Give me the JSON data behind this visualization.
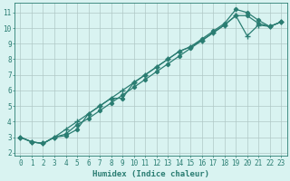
{
  "title": "",
  "xlabel": "Humidex (Indice chaleur)",
  "xlim": [
    -0.5,
    23.5
  ],
  "ylim": [
    1.8,
    11.6
  ],
  "xticks": [
    0,
    1,
    2,
    3,
    4,
    5,
    6,
    7,
    8,
    9,
    10,
    11,
    12,
    13,
    14,
    15,
    16,
    17,
    18,
    19,
    20,
    21,
    22,
    23
  ],
  "yticks": [
    2,
    3,
    4,
    5,
    6,
    7,
    8,
    9,
    10,
    11
  ],
  "bg_color": "#d9f3f1",
  "plot_bg_color": "#d9f3f1",
  "line_color": "#2a7d72",
  "grid_color": "#b0c8c6",
  "spine_color": "#2a7d72",
  "tick_color": "#2a7d72",
  "label_color": "#2a7d72",
  "line1_x": [
    0,
    1,
    2,
    3,
    4,
    5,
    6,
    7,
    8,
    9,
    10,
    11,
    12,
    13,
    14,
    15,
    16,
    17,
    18,
    19,
    20,
    21,
    22,
    23
  ],
  "line1_y": [
    3.0,
    2.7,
    2.6,
    3.0,
    3.1,
    3.5,
    4.5,
    5.0,
    5.5,
    5.5,
    6.5,
    7.0,
    7.5,
    8.0,
    8.5,
    8.8,
    9.3,
    9.8,
    10.3,
    11.2,
    11.0,
    10.5,
    10.1,
    10.4
  ],
  "line2_x": [
    0,
    1,
    2,
    3,
    4,
    5,
    6,
    7,
    8,
    9,
    10,
    11,
    12,
    13,
    14,
    15,
    16,
    17,
    18,
    19,
    20,
    21,
    22,
    23
  ],
  "line2_y": [
    3.0,
    2.7,
    2.6,
    3.0,
    3.2,
    3.8,
    4.2,
    4.7,
    5.2,
    5.7,
    6.2,
    6.7,
    7.2,
    7.7,
    8.2,
    8.7,
    9.2,
    9.7,
    10.2,
    10.8,
    10.8,
    10.3,
    10.1,
    10.4
  ],
  "line3_x": [
    0,
    1,
    2,
    3,
    4,
    5,
    6,
    7,
    8,
    9,
    10,
    11,
    12,
    13,
    14,
    15,
    16,
    17,
    18,
    19,
    20,
    21,
    22,
    23
  ],
  "line3_y": [
    3.0,
    2.7,
    2.6,
    3.0,
    3.5,
    4.0,
    4.5,
    5.0,
    5.5,
    6.0,
    6.5,
    7.0,
    7.5,
    8.0,
    8.5,
    8.8,
    9.2,
    9.7,
    10.2,
    10.8,
    9.5,
    10.2,
    10.1,
    10.4
  ],
  "fontsize_tick": 5.5,
  "fontsize_label": 6.5,
  "markersize": 2.2,
  "linewidth": 0.9
}
